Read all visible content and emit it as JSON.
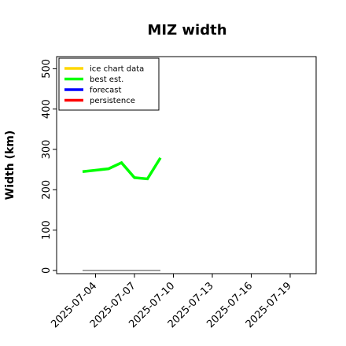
{
  "chart_data": {
    "type": "line",
    "title": "MIZ width",
    "xlabel": "",
    "ylabel": "Width (km)",
    "xlim": [
      "2025-07-01",
      "2025-07-21"
    ],
    "ylim": [
      -8,
      530
    ],
    "grid": false,
    "yticks": [
      0,
      100,
      200,
      300,
      400,
      500
    ],
    "xticks": [
      "2025-07-04",
      "2025-07-07",
      "2025-07-10",
      "2025-07-13",
      "2025-07-16",
      "2025-07-19"
    ],
    "highlighted_xtick": "2025-07-10",
    "highlight_color": "#2e8b2e",
    "legend": {
      "placement": "top-left",
      "entries": [
        {
          "name": "ice chart data",
          "color": "#ffd700"
        },
        {
          "name": "best est.",
          "color": "#00ff00"
        },
        {
          "name": "forecast",
          "color": "#0000ff"
        },
        {
          "name": "persistence",
          "color": "#ff0000"
        }
      ]
    },
    "series": [
      {
        "name": "best est.",
        "color": "#00ff00",
        "x": [
          "2025-07-03",
          "2025-07-05",
          "2025-07-06",
          "2025-07-07",
          "2025-07-08",
          "2025-07-09"
        ],
        "y": [
          245,
          252,
          267,
          230,
          227,
          279
        ]
      }
    ],
    "reference_line": {
      "color": "#808080",
      "x": [
        "2025-07-03",
        "2025-07-09"
      ],
      "y": [
        0,
        0
      ]
    }
  }
}
